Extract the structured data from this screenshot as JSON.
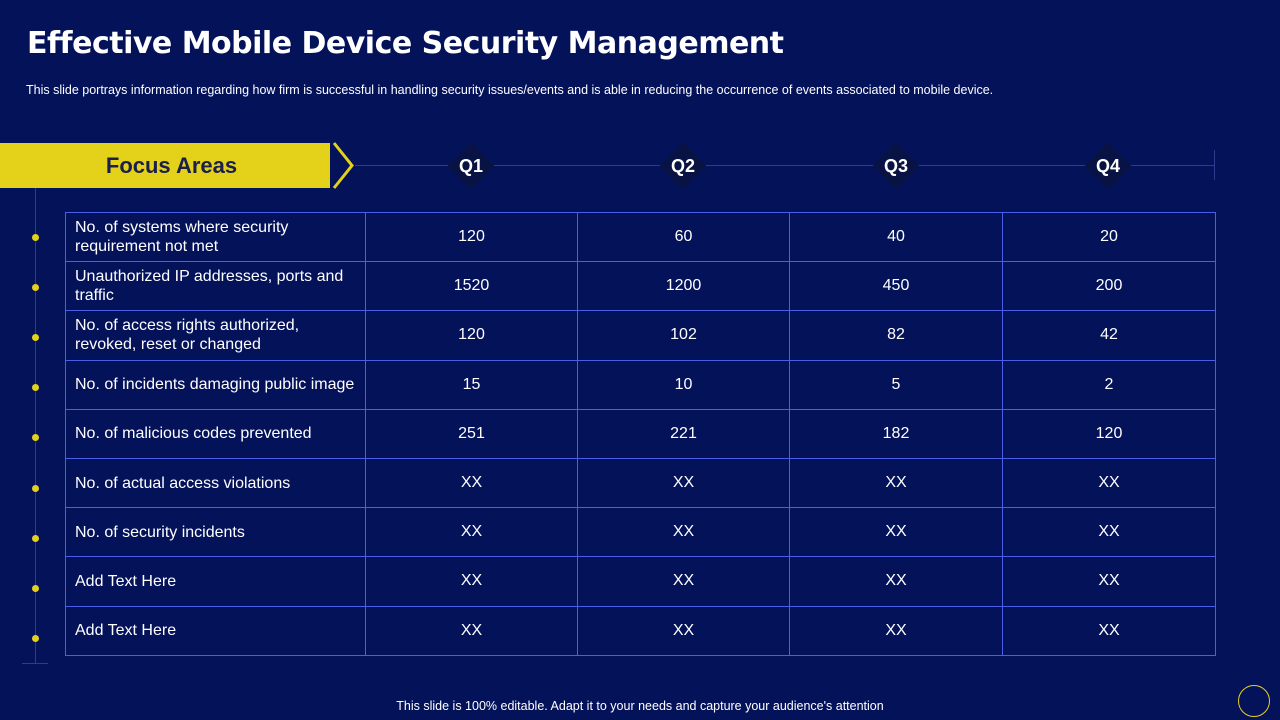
{
  "slide": {
    "title": "Effective Mobile Device Security Management",
    "subtitle": "This slide portrays information  regarding how firm is successful in handling security issues/events and is able in reducing the occurrence of events associated to mobile device.",
    "footer": "This slide is 100% editable. Adapt it to your needs and capture your audience's attention"
  },
  "header": {
    "focus_label": "Focus Areas",
    "quarters": [
      "Q1",
      "Q2",
      "Q3",
      "Q4"
    ]
  },
  "table": {
    "rows": [
      {
        "label": "No. of systems where security requirement not met",
        "values": [
          "120",
          "60",
          "40",
          "20"
        ]
      },
      {
        "label": "Unauthorized IP addresses, ports and traffic",
        "values": [
          "1520",
          "1200",
          "450",
          "200"
        ]
      },
      {
        "label": "No. of access rights authorized, revoked, reset or changed",
        "values": [
          "120",
          "102",
          "82",
          "42"
        ]
      },
      {
        "label": "No. of incidents damaging public image",
        "values": [
          "15",
          "10",
          "5",
          "2"
        ]
      },
      {
        "label": "No. of malicious codes prevented",
        "values": [
          "251",
          "221",
          "182",
          "120"
        ]
      },
      {
        "label": "No. of actual access  violations",
        "values": [
          "XX",
          "XX",
          "XX",
          "XX"
        ]
      },
      {
        "label": "No. of security incidents",
        "values": [
          "XX",
          "XX",
          "XX",
          "XX"
        ]
      },
      {
        "label": "Add Text Here",
        "values": [
          "XX",
          "XX",
          "XX",
          "XX"
        ]
      },
      {
        "label": "Add Text Here",
        "values": [
          "XX",
          "XX",
          "XX",
          "XX"
        ]
      }
    ]
  },
  "colors": {
    "background": "#04125a",
    "accent_yellow": "#e4d21a",
    "grid_border": "#4a5ee8",
    "diamond": "#091343"
  }
}
